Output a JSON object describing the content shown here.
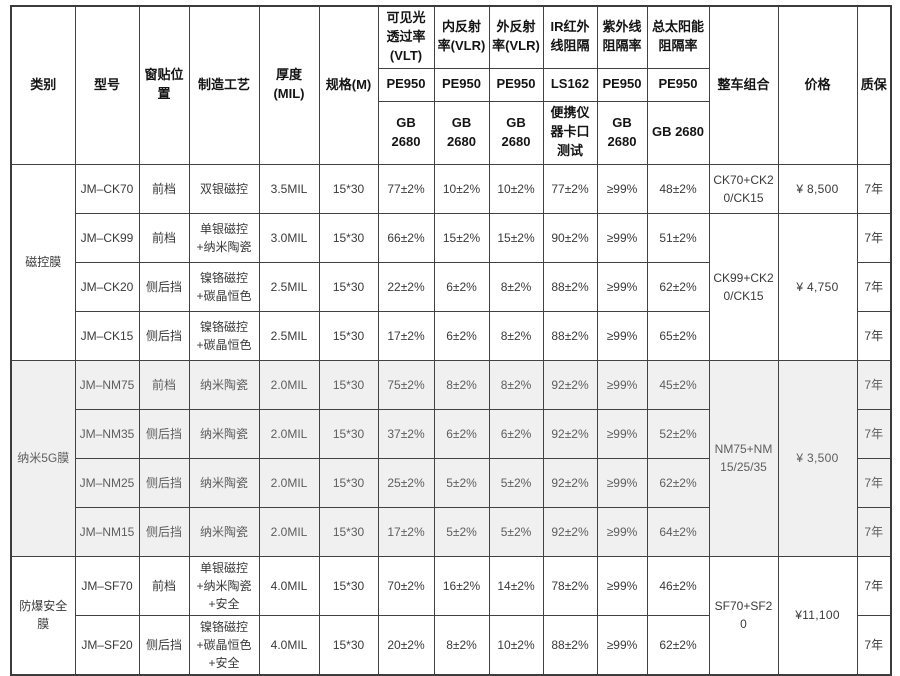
{
  "table": {
    "header": {
      "col_category": "类别",
      "col_model": "型号",
      "col_position": "窗贴位置",
      "col_process": "制造工艺",
      "col_thickness": "厚度(MIL)",
      "col_spec": "规格(M)",
      "col_combo": "整车组合",
      "col_price": "价格",
      "col_warranty": "质保",
      "metric_groups": [
        {
          "title": "可见光透过率(VLT)",
          "device": "PE950",
          "standard": "GB 2680"
        },
        {
          "title": "内反射率(VLR)",
          "device": "PE950",
          "standard": "GB 2680"
        },
        {
          "title": "外反射率(VLR)",
          "device": "PE950",
          "standard": "GB 2680"
        },
        {
          "title": "IR红外线阻隔",
          "device": "LS162",
          "standard": "便携仪器卡口测试"
        },
        {
          "title": "紫外线阻隔率",
          "device": "PE950",
          "standard": "GB 2680"
        },
        {
          "title": "总太阳能阻隔率",
          "device": "PE950",
          "standard": "GB 2680"
        }
      ]
    },
    "groups": [
      {
        "category": "磁控膜",
        "shaded": false,
        "rows": [
          {
            "model": "JM–CK70",
            "position": "前档",
            "process": "双银磁控",
            "thickness": "3.5MIL",
            "spec": "15*30",
            "vlt": "77±2%",
            "vlr_in": "10±2%",
            "vlr_out": "10±2%",
            "ir": "77±2%",
            "uv": "≥99%",
            "tser": "48±2%",
            "warranty": "7年"
          },
          {
            "model": "JM–CK99",
            "position": "前档",
            "process": "单银磁控+纳米陶瓷",
            "thickness": "3.0MIL",
            "spec": "15*30",
            "vlt": "66±2%",
            "vlr_in": "15±2%",
            "vlr_out": "15±2%",
            "ir": "90±2%",
            "uv": "≥99%",
            "tser": "51±2%",
            "warranty": "7年"
          },
          {
            "model": "JM–CK20",
            "position": "侧后挡",
            "process": "镍铬磁控+碳晶恒色",
            "thickness": "2.5MIL",
            "spec": "15*30",
            "vlt": "22±2%",
            "vlr_in": "6±2%",
            "vlr_out": "8±2%",
            "ir": "88±2%",
            "uv": "≥99%",
            "tser": "62±2%",
            "warranty": "7年"
          },
          {
            "model": "JM–CK15",
            "position": "侧后挡",
            "process": "镍铬磁控+碳晶恒色",
            "thickness": "2.5MIL",
            "spec": "15*30",
            "vlt": "17±2%",
            "vlr_in": "6±2%",
            "vlr_out": "8±2%",
            "ir": "88±2%",
            "uv": "≥99%",
            "tser": "65±2%",
            "warranty": "7年"
          }
        ],
        "combos": [
          {
            "row_start": 0,
            "row_span": 1,
            "combo": "CK70+CK20/CK15",
            "price": "¥ 8,500"
          },
          {
            "row_start": 1,
            "row_span": 3,
            "combo": "CK99+CK20/CK15",
            "price": "¥ 4,750"
          }
        ]
      },
      {
        "category": "纳米5G膜",
        "shaded": true,
        "rows": [
          {
            "model": "JM–NM75",
            "position": "前档",
            "process": "纳米陶瓷",
            "thickness": "2.0MIL",
            "spec": "15*30",
            "vlt": "75±2%",
            "vlr_in": "8±2%",
            "vlr_out": "8±2%",
            "ir": "92±2%",
            "uv": "≥99%",
            "tser": "45±2%",
            "warranty": "7年"
          },
          {
            "model": "JM–NM35",
            "position": "侧后挡",
            "process": "纳米陶瓷",
            "thickness": "2.0MIL",
            "spec": "15*30",
            "vlt": "37±2%",
            "vlr_in": "6±2%",
            "vlr_out": "6±2%",
            "ir": "92±2%",
            "uv": "≥99%",
            "tser": "52±2%",
            "warranty": "7年"
          },
          {
            "model": "JM–NM25",
            "position": "侧后挡",
            "process": "纳米陶瓷",
            "thickness": "2.0MIL",
            "spec": "15*30",
            "vlt": "25±2%",
            "vlr_in": "5±2%",
            "vlr_out": "5±2%",
            "ir": "92±2%",
            "uv": "≥99%",
            "tser": "62±2%",
            "warranty": "7年"
          },
          {
            "model": "JM–NM15",
            "position": "侧后挡",
            "process": "纳米陶瓷",
            "thickness": "2.0MIL",
            "spec": "15*30",
            "vlt": "17±2%",
            "vlr_in": "5±2%",
            "vlr_out": "5±2%",
            "ir": "92±2%",
            "uv": "≥99%",
            "tser": "64±2%",
            "warranty": "7年"
          }
        ],
        "combos": [
          {
            "row_start": 0,
            "row_span": 4,
            "combo": "NM75+NM15/25/35",
            "price": "¥ 3,500"
          }
        ]
      },
      {
        "category": "防爆安全膜",
        "shaded": false,
        "rows": [
          {
            "model": "JM–SF70",
            "position": "前档",
            "process": "单银磁控+纳米陶瓷+安全",
            "thickness": "4.0MIL",
            "spec": "15*30",
            "vlt": "70±2%",
            "vlr_in": "16±2%",
            "vlr_out": "14±2%",
            "ir": "78±2%",
            "uv": "≥99%",
            "tser": "46±2%",
            "warranty": "7年"
          },
          {
            "model": "JM–SF20",
            "position": "侧后挡",
            "process": "镍铬磁控+碳晶恒色+安全",
            "thickness": "4.0MIL",
            "spec": "15*30",
            "vlt": "20±2%",
            "vlr_in": "8±2%",
            "vlr_out": "10±2%",
            "ir": "88±2%",
            "uv": "≥99%",
            "tser": "62±2%",
            "warranty": "7年"
          }
        ],
        "combos": [
          {
            "row_start": 0,
            "row_span": 2,
            "combo": "SF70+SF20",
            "price": "¥11,100"
          }
        ]
      }
    ]
  },
  "colors": {
    "shaded_row_bg": "#f0f0f0",
    "border": "#424242",
    "price_header_text": "#9b9b9b"
  }
}
